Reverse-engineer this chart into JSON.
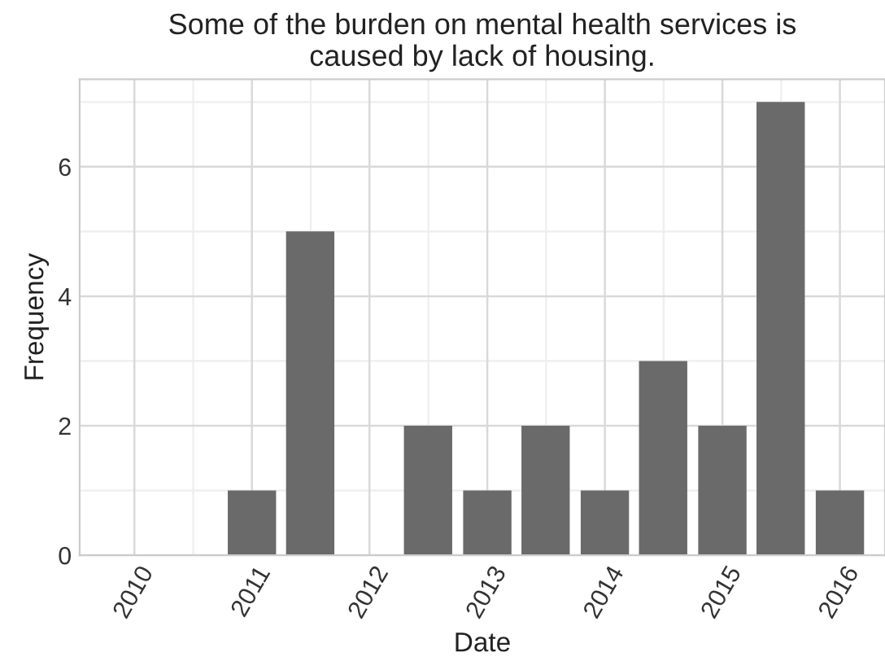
{
  "chart_data": {
    "type": "bar",
    "title": "Some of the burden on mental health services is\ncaused by lack of housing.",
    "xlabel": "Date",
    "ylabel": "Frequency",
    "x": [
      "2011-01",
      "2011-07",
      "2012-07",
      "2013-01",
      "2013-07",
      "2014-01",
      "2014-07",
      "2015-01",
      "2015-07",
      "2016-01"
    ],
    "values": [
      1,
      5,
      2,
      1,
      2,
      1,
      3,
      2,
      7,
      1
    ],
    "color": "#6a6a6a",
    "xlim": [
      "2009-07-15",
      "2016-05-20"
    ],
    "xticks": [
      "2010",
      "2011",
      "2012",
      "2013",
      "2014",
      "2015",
      "2016"
    ],
    "ylim": [
      0,
      7.35
    ],
    "yticks": [
      0,
      2,
      4,
      6
    ],
    "grid": true
  }
}
